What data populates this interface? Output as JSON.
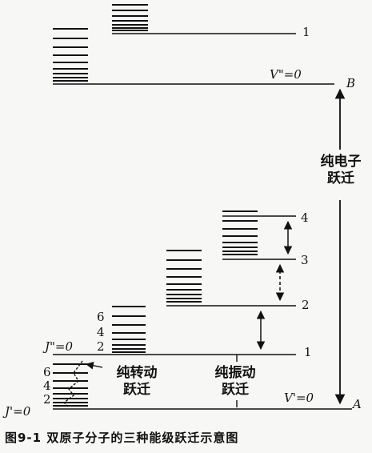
{
  "caption": "图9-1  双原子分子的三种能级跃迁示意图",
  "electronic": {
    "upper_state_label": "V\"=0",
    "upper_v1_label": "1",
    "upper_point": "B",
    "lower_state_label": "V'=0",
    "lower_point": "A",
    "transition_line1": "纯电子",
    "transition_line2": "跃迁"
  },
  "vibration": {
    "levels": [
      "1",
      "2",
      "3",
      "4"
    ],
    "transition_line1": "纯振动",
    "transition_line2": "跃迁"
  },
  "rotation": {
    "upper_labels": [
      "6",
      "4",
      "2"
    ],
    "upper_J": "J\"=0",
    "lower_labels": [
      "6",
      "4",
      "2"
    ],
    "lower_J": "J'=0",
    "transition_line1": "纯转动",
    "transition_line2": "跃迁"
  },
  "colors": {
    "ink": "#111111",
    "paper": "#f7f7f5"
  }
}
